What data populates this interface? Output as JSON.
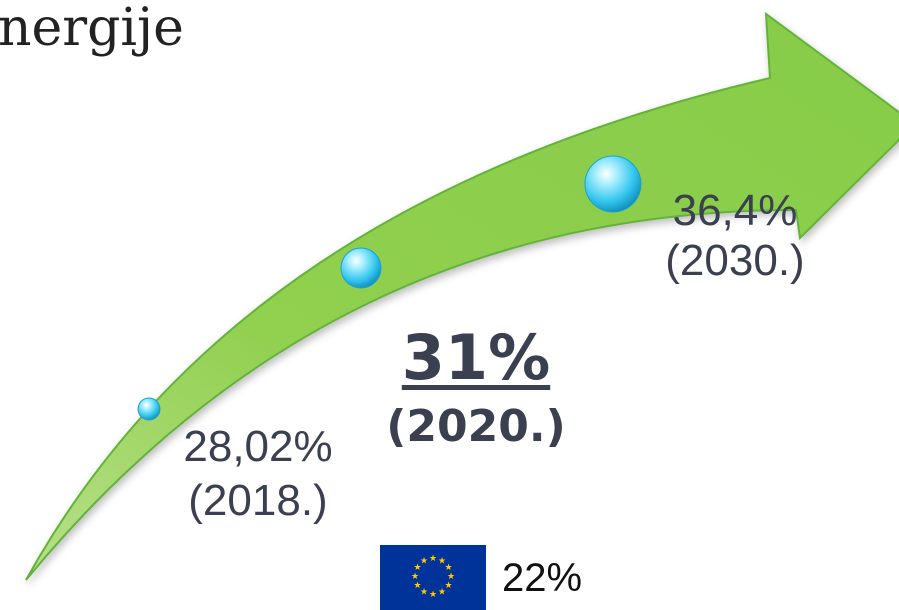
{
  "title": "nergije",
  "milestones": [
    {
      "value": "28,02%",
      "year": "(2018.)"
    },
    {
      "value": "31%",
      "year": "(2020.)"
    },
    {
      "value": "36,4%",
      "year": "(2030.)"
    }
  ],
  "eu_target": {
    "value": "22%",
    "icon": "eu-flag-icon"
  },
  "colors": {
    "arrow_fill": "#92d050",
    "arrow_edge": "#5aa832",
    "bubble": "#38c9ee",
    "text": "#3a4050",
    "eu_blue": "#003399",
    "eu_star": "#ffcc00"
  }
}
